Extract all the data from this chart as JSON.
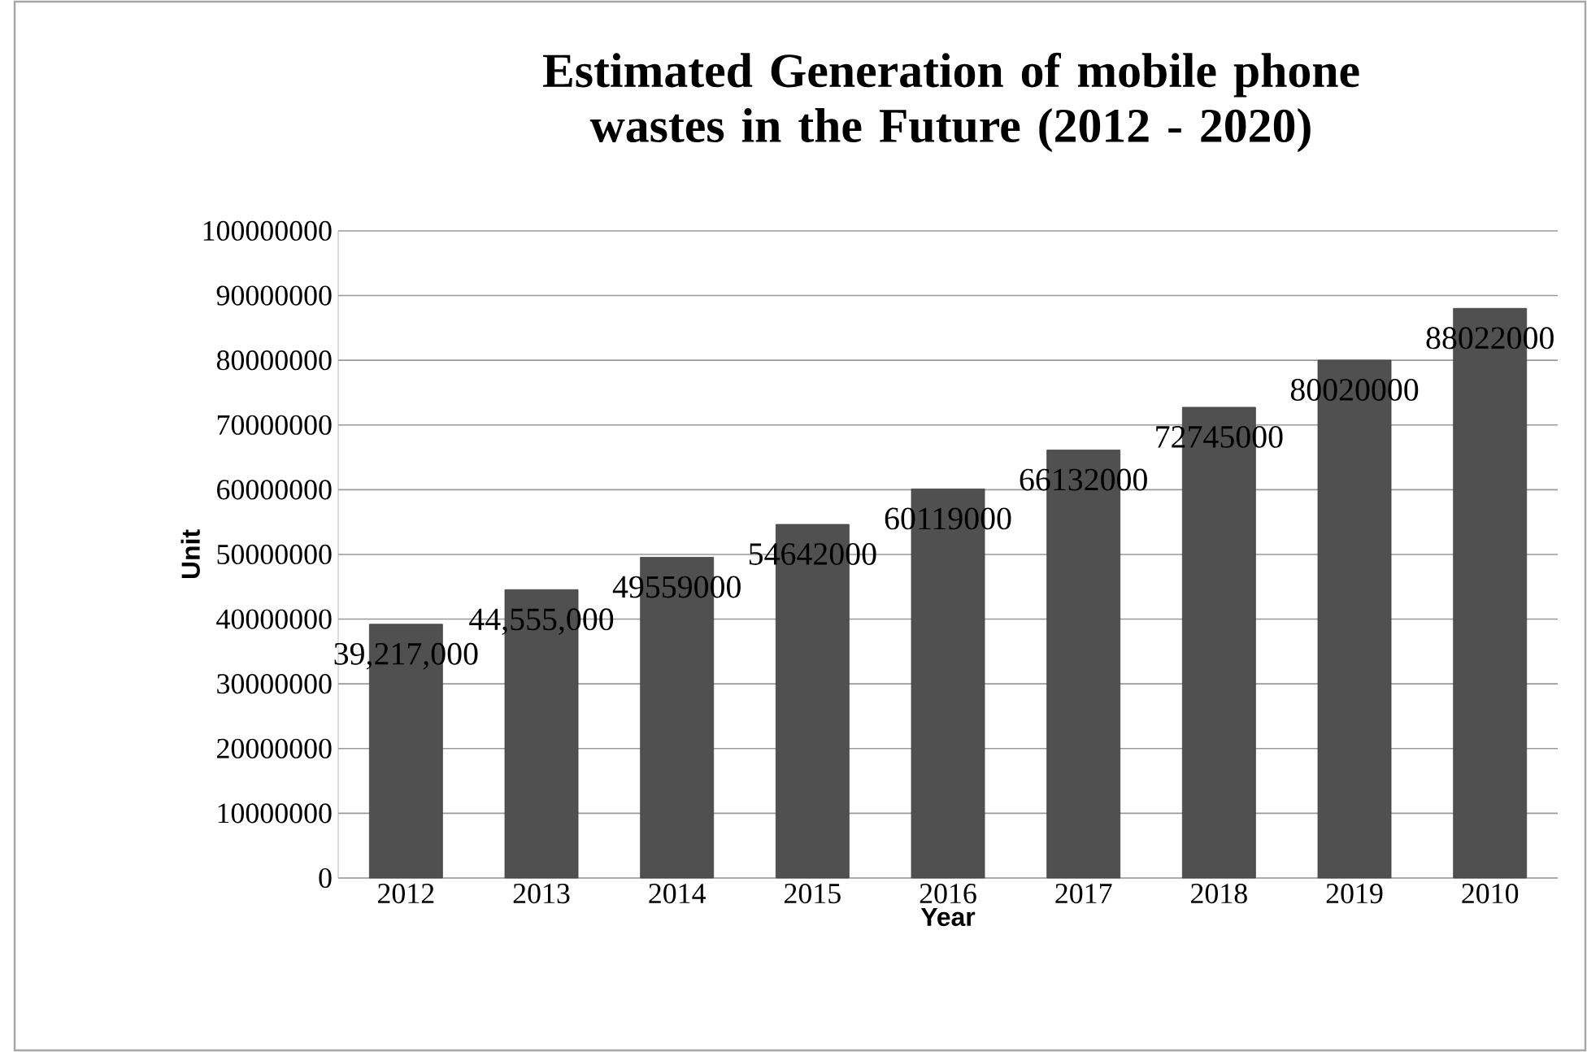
{
  "chart_data": {
    "type": "bar",
    "title": "Estimated Generation of mobile phone wastes in the Future (2012 - 2020)",
    "xlabel": "Year",
    "ylabel": "Unit",
    "categories": [
      "2012",
      "2013",
      "2014",
      "2015",
      "2016",
      "2017",
      "2018",
      "2019",
      "2010"
    ],
    "values": [
      39217000,
      44555000,
      49559000,
      54642000,
      60119000,
      66132000,
      72745000,
      80020000,
      88022000
    ],
    "value_labels": [
      "39,217,000",
      "44,555,000",
      "49559000",
      "54642000",
      "60119000",
      "66132000",
      "72745000",
      "80020000",
      "88022000"
    ],
    "color": "#505050",
    "ylim": [
      0,
      100000000
    ],
    "yticks": [
      0,
      10000000,
      20000000,
      30000000,
      40000000,
      50000000,
      60000000,
      70000000,
      80000000,
      90000000,
      100000000
    ],
    "grid": "y"
  }
}
